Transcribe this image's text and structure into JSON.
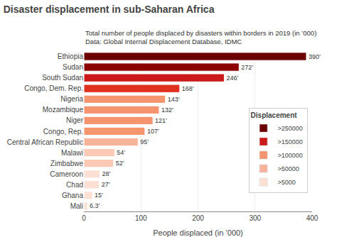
{
  "chart_data": {
    "type": "bar",
    "orientation": "horizontal",
    "title": "Disaster displacement in sub-Saharan Africa",
    "subtitle": "Total number of people displaced by disasters within borders in 2019 (in ’000)\nData: Global Internal Displacement Database, IDMC",
    "xlabel": "People displaced (in ’000)",
    "categories": [
      "Mali",
      "Ghana",
      "Chad",
      "Cameroon",
      "Zimbabwe",
      "Malawi",
      "Central African Republic",
      "Congo, Rep.",
      "Niger",
      "Mozambique",
      "Nigeria",
      "Congo, Dem. Rep.",
      "South Sudan",
      "Sudan",
      "Ethiopia"
    ],
    "values": [
      6.3,
      15,
      27,
      28,
      52,
      54,
      95,
      107,
      121,
      132,
      143,
      168,
      246,
      272,
      390
    ],
    "value_labels": [
      "6.3’",
      "15’",
      "27’",
      "28’",
      "52’",
      "54’",
      "95’",
      "107’",
      "121’",
      "132’",
      "143’",
      "168’",
      "246’",
      "272’",
      "390’"
    ],
    "data_labels": true,
    "colors": [
      "#fde0d4",
      "#fde0d4",
      "#fde0d4",
      "#fde0d4",
      "#fcc9b5",
      "#fcc9b5",
      "#f8b49a",
      "#f4956f",
      "#f4956f",
      "#f4956f",
      "#f4956f",
      "#e03020",
      "#cc1a1a",
      "#8b0000",
      "#6b0000"
    ],
    "xlim": [
      0,
      400
    ],
    "xticks": [
      0,
      100,
      200,
      300,
      400
    ],
    "grid": "x",
    "legend": "right",
    "legend_title": "Displacement",
    "legend_items": [
      {
        "name": ">250000",
        "color": "#6b0000"
      },
      {
        "name": ">150000",
        "color": "#cc1a1a"
      },
      {
        "name": ">100000",
        "color": "#f4956f"
      },
      {
        "name": ">50000",
        "color": "#f8b49a"
      },
      {
        "name": ">5000",
        "color": "#fde0d4"
      }
    ]
  }
}
